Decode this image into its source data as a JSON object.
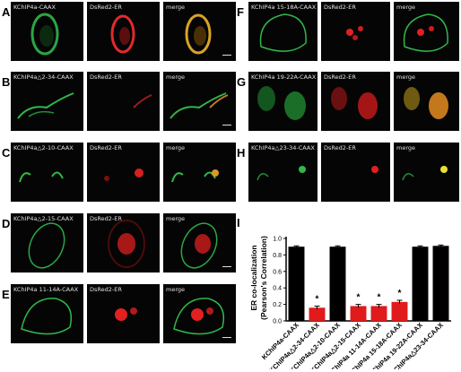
{
  "figure": {
    "rows": [
      {
        "label": "A",
        "caption": "KChIP4a-CAAX",
        "er": "DsRed2-ER",
        "merge": "merge",
        "scalebar": true
      },
      {
        "label": "B",
        "caption": "KChIP4a△2-34-CAAX",
        "er": "DsRed2-ER",
        "merge": "merge",
        "scalebar": true
      },
      {
        "label": "C",
        "caption": "KChIP4a△2-10-CAAX",
        "er": "DsRed2-ER",
        "merge": "merge",
        "scalebar": false
      },
      {
        "label": "D",
        "caption": "KChIP4a△2-15-CAAX",
        "er": "DsRed2-ER",
        "merge": "merge",
        "scalebar": true
      },
      {
        "label": "E",
        "caption": "KChIP4a 11-14A-CAAX",
        "er": "DsRed2-ER",
        "merge": "merge",
        "scalebar": true
      },
      {
        "label": "F",
        "caption": "KChIP4a 15-18A-CAAX",
        "er": "DsRed2-ER",
        "merge": "merge",
        "scalebar": false
      },
      {
        "label": "G",
        "caption": "KChIP4a 19-22A-CAAX",
        "er": "DsRed2-ER",
        "merge": "merge",
        "scalebar": false
      },
      {
        "label": "H",
        "caption": "KChIP4a△23-34-CAAX",
        "er": "DsRed2-ER",
        "merge": "merge",
        "scalebar": false
      }
    ],
    "chart_label": "I"
  },
  "chart_data": {
    "type": "bar",
    "ylabel_line1": "ER co-localization",
    "ylabel_line2": "(Pearson's Correlation)",
    "ylim": [
      0,
      1.0
    ],
    "yticks": [
      "0.0",
      "0.2",
      "0.4",
      "0.6",
      "0.8",
      "1.0"
    ],
    "categories": [
      "KChIP4a-CAAX",
      "KChIP4a△2-34-CAAX",
      "KChIP4a△2-10-CAAX",
      "KChIP4a△2-15-CAAX",
      "KChIP4a 11-14A-CAAX",
      "KChIP4a 15-18A-CAAX",
      "KChIP4a 19-22A-CAAX",
      "KChIP4a△23-34-CAAX"
    ],
    "values": [
      0.9,
      0.16,
      0.9,
      0.18,
      0.18,
      0.23,
      0.9,
      0.91
    ],
    "errors": [
      0.01,
      0.02,
      0.01,
      0.02,
      0.02,
      0.02,
      0.01,
      0.01
    ],
    "significant": [
      false,
      true,
      false,
      true,
      true,
      true,
      false,
      false
    ],
    "significance_mark": "*",
    "colors": {
      "control": "#000000",
      "significant": "#e11b1b"
    }
  }
}
